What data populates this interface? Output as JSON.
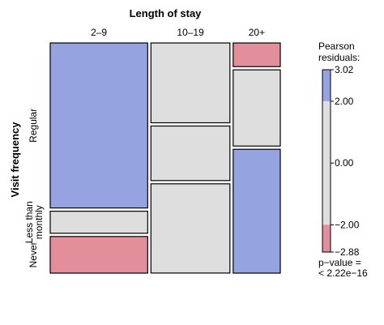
{
  "chart_data": {
    "type": "mosaic",
    "top_variable": "Length of stay",
    "left_variable": "Visit frequency",
    "columns": [
      "2–9",
      "10–19",
      "20+"
    ],
    "rows": [
      "Regular",
      "Less than monthly",
      "Never"
    ],
    "column_proportions": [
      0.4358,
      0.3534,
      0.2108
    ],
    "cell_proportions_within_column": [
      [
        0.7377,
        0.0985,
        0.1638
      ],
      [
        0.3569,
        0.244,
        0.399
      ],
      [
        0.1057,
        0.3405,
        0.5538
      ]
    ],
    "pearson_residual_class": [
      [
        "pos_high",
        "neutral",
        "neg_high"
      ],
      [
        "neutral",
        "neutral",
        "neutral"
      ],
      [
        "neg_high",
        "neutral",
        "pos_high"
      ]
    ],
    "legend": {
      "title_line1": "Pearson",
      "title_line2": "residuals:",
      "ticks": [
        "3.02",
        "2.00",
        "0.00",
        "−2.00",
        "−2.88"
      ],
      "tick_values": [
        3.02,
        2.0,
        0.0,
        -2.0,
        -2.88
      ],
      "max": 3.02,
      "min": -2.88,
      "pvalue_line1": "p−value =",
      "pvalue_line2": "< 2.22e−16"
    },
    "colors": {
      "pos_high": "#95a3e0",
      "neutral": "#dedede",
      "neg_high": "#e28f9b",
      "stroke": "#000000"
    }
  }
}
